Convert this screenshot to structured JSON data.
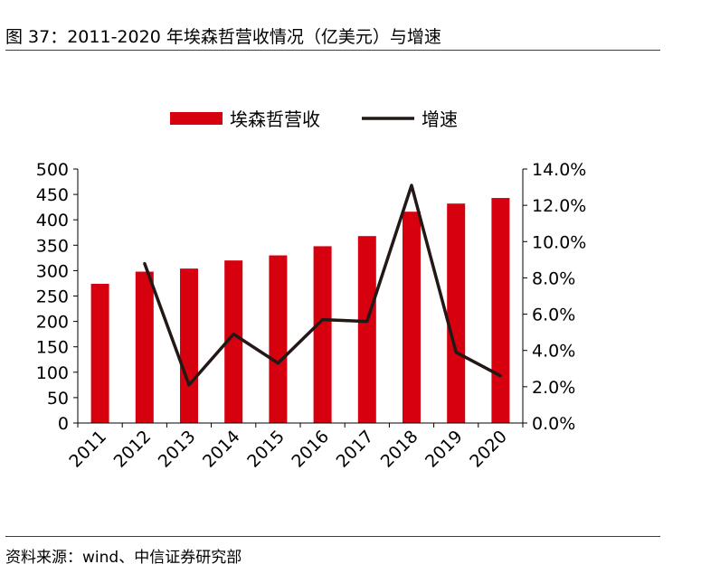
{
  "header": {
    "title": "图 37：2011-2020 年埃森哲营收情况（亿美元）与增速"
  },
  "footer": {
    "source": "资料来源：wind、中信证券研究部"
  },
  "colors": {
    "bar": "#d7000f",
    "line": "#231815",
    "rule": "#c8000a"
  },
  "chart_data": {
    "type": "bar",
    "categories": [
      "2011",
      "2012",
      "2013",
      "2014",
      "2015",
      "2016",
      "2017",
      "2018",
      "2019",
      "2020"
    ],
    "series": [
      {
        "name": "埃森哲营收",
        "type": "bar",
        "axis": "left",
        "values": [
          274,
          298,
          304,
          320,
          330,
          348,
          368,
          416,
          432,
          443
        ]
      },
      {
        "name": "增速",
        "type": "line",
        "axis": "right",
        "values": [
          null,
          0.088,
          0.021,
          0.049,
          0.033,
          0.057,
          0.056,
          0.131,
          0.039,
          0.026
        ]
      }
    ],
    "y_left": {
      "range": [
        0,
        500
      ],
      "ticks": [
        "0",
        "50",
        "100",
        "150",
        "200",
        "250",
        "300",
        "350",
        "400",
        "450",
        "500"
      ]
    },
    "y_right": {
      "range": [
        0,
        0.14
      ],
      "ticks": [
        "0.0%",
        "2.0%",
        "4.0%",
        "6.0%",
        "8.0%",
        "10.0%",
        "12.0%",
        "14.0%"
      ]
    },
    "legend_position": "top-center",
    "grid": false
  }
}
